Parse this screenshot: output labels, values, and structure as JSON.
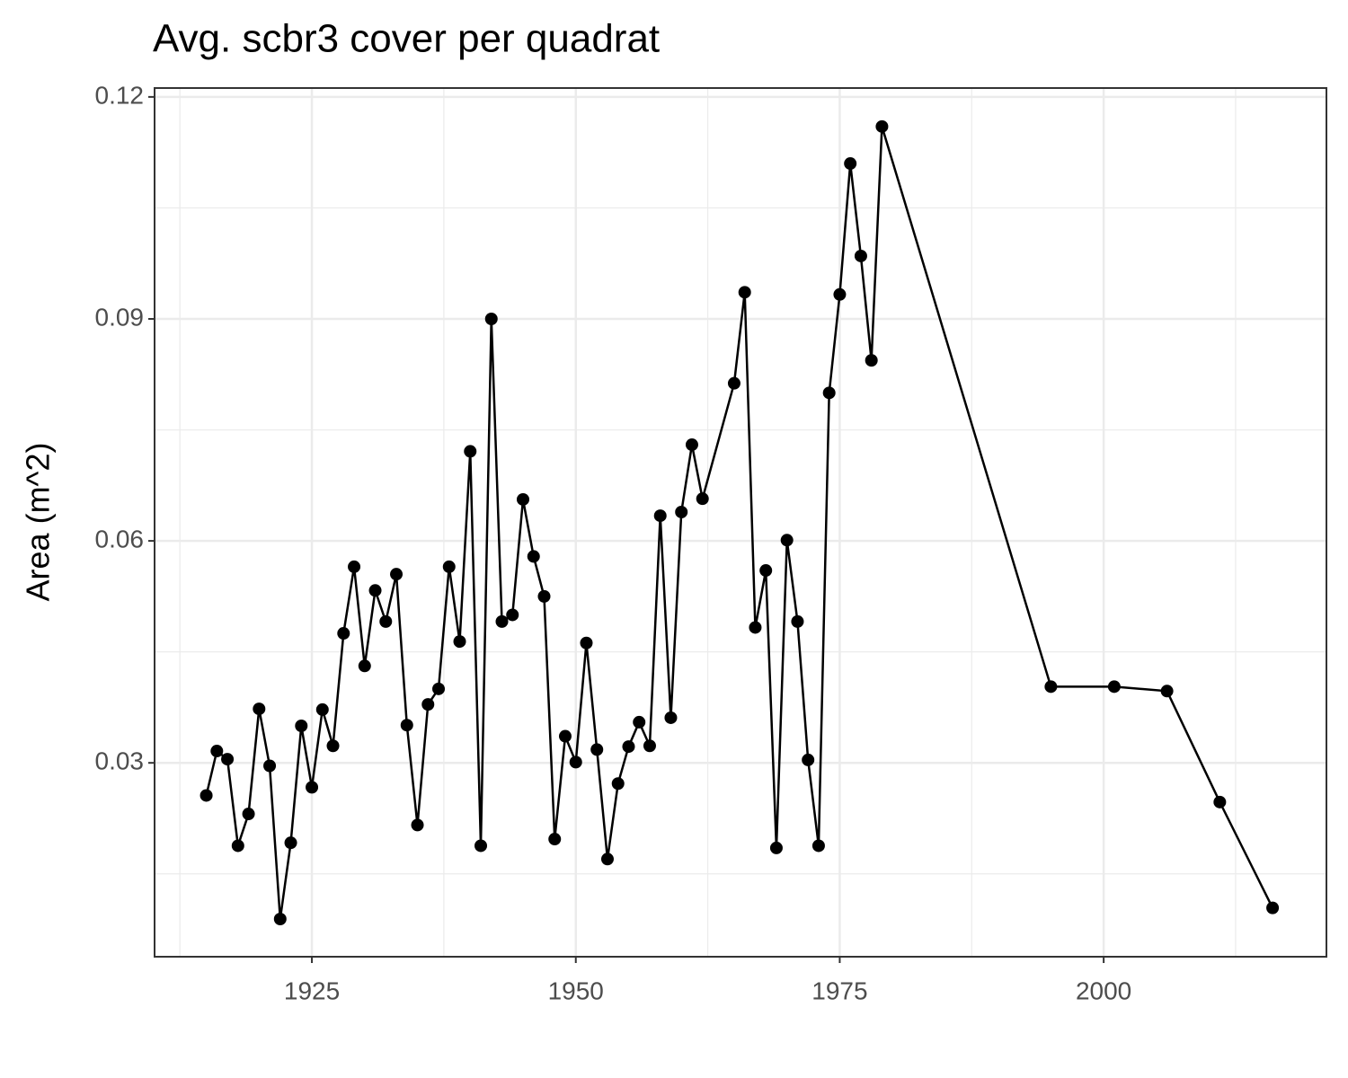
{
  "chart_data": {
    "type": "line",
    "title": "Avg. scbr3 cover per quadrat",
    "y_label": "Area (m^2)",
    "x": [
      1915,
      1916,
      1917,
      1918,
      1919,
      1920,
      1921,
      1922,
      1923,
      1924,
      1925,
      1926,
      1927,
      1928,
      1929,
      1930,
      1931,
      1932,
      1933,
      1934,
      1935,
      1936,
      1937,
      1938,
      1939,
      1940,
      1941,
      1942,
      1943,
      1944,
      1945,
      1946,
      1947,
      1948,
      1949,
      1950,
      1951,
      1952,
      1953,
      1954,
      1955,
      1956,
      1957,
      1958,
      1959,
      1960,
      1961,
      1962,
      1965,
      1966,
      1967,
      1968,
      1969,
      1970,
      1971,
      1972,
      1973,
      1974,
      1975,
      1976,
      1977,
      1978,
      1979,
      1995,
      2001,
      2006,
      2011,
      2016
    ],
    "series": [
      {
        "name": "scbr3",
        "color": "#000000",
        "values": [
          0.0256,
          0.0316,
          0.0305,
          0.0188,
          0.0231,
          0.0373,
          0.0296,
          0.0089,
          0.0192,
          0.035,
          0.0267,
          0.0372,
          0.0323,
          0.0475,
          0.0565,
          0.0431,
          0.0533,
          0.0491,
          0.0555,
          0.0351,
          0.0216,
          0.0379,
          0.04,
          0.0565,
          0.0464,
          0.0721,
          0.0188,
          0.09,
          0.0491,
          0.05,
          0.0656,
          0.0579,
          0.0525,
          0.0197,
          0.0336,
          0.0301,
          0.0462,
          0.0318,
          0.017,
          0.0272,
          0.0322,
          0.0355,
          0.0323,
          0.0634,
          0.0361,
          0.0639,
          0.073,
          0.0657,
          0.0813,
          0.0936,
          0.0483,
          0.056,
          0.0185,
          0.0601,
          0.0491,
          0.0304,
          0.0188,
          0.08,
          0.0933,
          0.111,
          0.0985,
          0.0844,
          0.116,
          0.0403,
          0.0403,
          0.0397,
          0.0247,
          0.0104
        ]
      }
    ],
    "xlim": [
      1910.1,
      2021.1
    ],
    "ylim": [
      0.0038,
      0.1212
    ],
    "xticks": [
      1925,
      1950,
      1975,
      2000
    ],
    "yticks": [
      {
        "value": 0.03,
        "label": "0.03"
      },
      {
        "value": 0.06,
        "label": "0.06"
      },
      {
        "value": 0.09,
        "label": "0.09"
      },
      {
        "value": 0.12,
        "label": "0.12"
      }
    ],
    "x_minor_ticks": [
      1912.5,
      1937.5,
      1962.5,
      1987.5,
      2012.5
    ],
    "y_minor_ticks": [
      0.015,
      0.045,
      0.075,
      0.105
    ],
    "grid": true
  }
}
